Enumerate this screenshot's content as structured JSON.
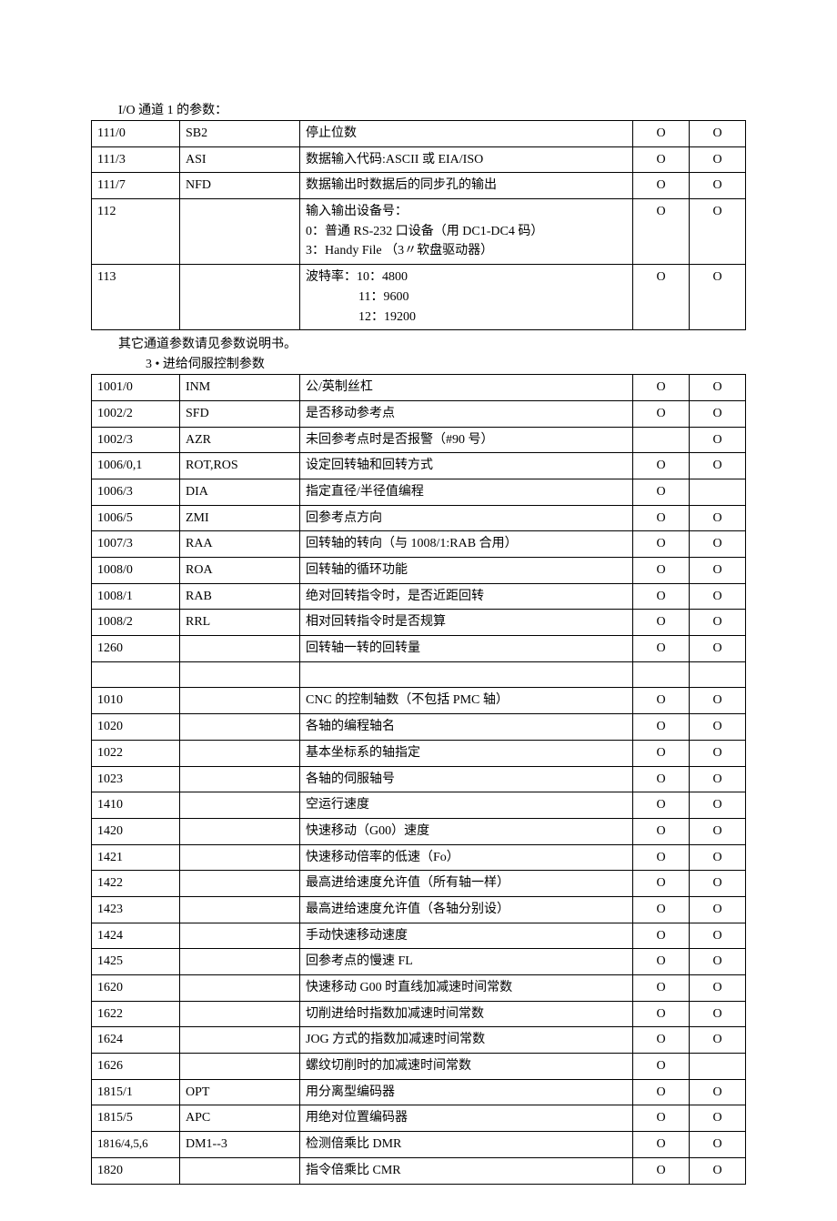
{
  "section1": {
    "caption": "I/O 通道 1 的参数：",
    "rows": [
      {
        "a": "111/0",
        "b": "SB2",
        "c": [
          "停止位数"
        ],
        "d": "O",
        "e": "O"
      },
      {
        "a": "111/3",
        "b": "ASI",
        "c": [
          "数据输入代码:ASCII 或 EIA/ISO"
        ],
        "d": "O",
        "e": "O"
      },
      {
        "a": "111/7",
        "b": "NFD",
        "c": [
          "数据输出时数据后的同步孔的输出"
        ],
        "d": "O",
        "e": "O"
      },
      {
        "a": "112",
        "b": "",
        "c": [
          "输入输出设备号：",
          "0：普通 RS-232 口设备（用 DC1-DC4 码）",
          "3：Handy File （3〃软盘驱动器）"
        ],
        "d": "O",
        "e": "O"
      },
      {
        "a": "113",
        "b": "",
        "c": [
          "波特率：10：4800",
          "11：9600",
          "12：19200"
        ],
        "indent": [
          false,
          true,
          true
        ],
        "d": "O",
        "e": "O"
      }
    ],
    "footnote": "其它通道参数请见参数说明书。"
  },
  "section2": {
    "caption": "3 • 进给伺服控制参数",
    "rows": [
      {
        "a": "1001/0",
        "b": "INM",
        "c": "公/英制丝杠",
        "d": "O",
        "e": "O"
      },
      {
        "a": "1002/2",
        "b": "SFD",
        "c": "是否移动参考点",
        "d": "O",
        "e": "O"
      },
      {
        "a": "1002/3",
        "b": "AZR",
        "c": "未回参考点时是否报警（#90 号）",
        "d": "",
        "e": "O"
      },
      {
        "a": "1006/0,1",
        "b": "ROT,ROS",
        "c": "设定回转轴和回转方式",
        "d": "O",
        "e": "O"
      },
      {
        "a": "1006/3",
        "b": "DIA",
        "c": "指定直径/半径值编程",
        "d": "O",
        "e": ""
      },
      {
        "a": "1006/5",
        "b": "ZMI",
        "c": "回参考点方向",
        "d": "O",
        "e": "O"
      },
      {
        "a": "1007/3",
        "b": "RAA",
        "c": "回转轴的转向（与 1008/1:RAB 合用）",
        "d": "O",
        "e": "O"
      },
      {
        "a": "1008/0",
        "b": "ROA",
        "c": "回转轴的循环功能",
        "d": "O",
        "e": "O"
      },
      {
        "a": "1008/1",
        "b": "RAB",
        "c": "绝对回转指令时，是否近距回转",
        "d": "O",
        "e": "O"
      },
      {
        "a": "1008/2",
        "b": "RRL",
        "c": "相对回转指令时是否规算",
        "d": "O",
        "e": "O"
      },
      {
        "a": "1260",
        "b": "",
        "c": "回转轴一转的回转量",
        "d": "O",
        "e": "O"
      },
      {
        "a": "",
        "b": "",
        "c": "",
        "d": "",
        "e": "",
        "blank": true
      },
      {
        "a": "1010",
        "b": "",
        "c": "CNC 的控制轴数（不包括 PMC 轴）",
        "d": "O",
        "e": "O"
      },
      {
        "a": "1020",
        "b": "",
        "c": "各轴的编程轴名",
        "d": "O",
        "e": "O"
      },
      {
        "a": "1022",
        "b": "",
        "c": "基本坐标系的轴指定",
        "d": "O",
        "e": "O"
      },
      {
        "a": "1023",
        "b": "",
        "c": "各轴的伺服轴号",
        "d": "O",
        "e": "O"
      },
      {
        "a": "1410",
        "b": "",
        "c": "空运行速度",
        "d": "O",
        "e": "O"
      },
      {
        "a": "1420",
        "b": "",
        "c": "快速移动（G00）速度",
        "d": "O",
        "e": "O"
      },
      {
        "a": "1421",
        "b": "",
        "c": "快速移动倍率的低速（Fo）",
        "d": "O",
        "e": "O"
      },
      {
        "a": "1422",
        "b": "",
        "c": "最高进给速度允许值（所有轴一样）",
        "d": "O",
        "e": "O"
      },
      {
        "a": "1423",
        "b": "",
        "c": "最高进给速度允许值（各轴分别设）",
        "d": "O",
        "e": "O"
      },
      {
        "a": "1424",
        "b": "",
        "c": "手动快速移动速度",
        "d": "O",
        "e": "O"
      },
      {
        "a": "1425",
        "b": "",
        "c": "回参考点的慢速 FL",
        "d": "O",
        "e": "O"
      },
      {
        "a": "1620",
        "b": "",
        "c": "快速移动 G00 时直线加减速时间常数",
        "d": "O",
        "e": "O"
      },
      {
        "a": "1622",
        "b": "",
        "c": "切削进给时指数加减速时间常数",
        "d": "O",
        "e": "O"
      },
      {
        "a": "1624",
        "b": "",
        "c": "JOG 方式的指数加减速时间常数",
        "d": "O",
        "e": "O"
      },
      {
        "a": "1626",
        "b": "",
        "c": "螺纹切削时的加减速时间常数",
        "d": "O",
        "e": ""
      },
      {
        "a": "1815/1",
        "b": "OPT",
        "c": "用分离型编码器",
        "d": "O",
        "e": "O"
      },
      {
        "a": "1815/5",
        "b": "APC",
        "c": "用绝对位置编码器",
        "d": "O",
        "e": "O"
      },
      {
        "a": "1816/4,5,6",
        "b": "DM1--3",
        "c": "检测倍乘比 DMR",
        "d": "O",
        "e": "O",
        "small": true
      },
      {
        "a": "1820",
        "b": "",
        "c": "指令倍乘比 CMR",
        "d": "O",
        "e": "O"
      }
    ]
  }
}
